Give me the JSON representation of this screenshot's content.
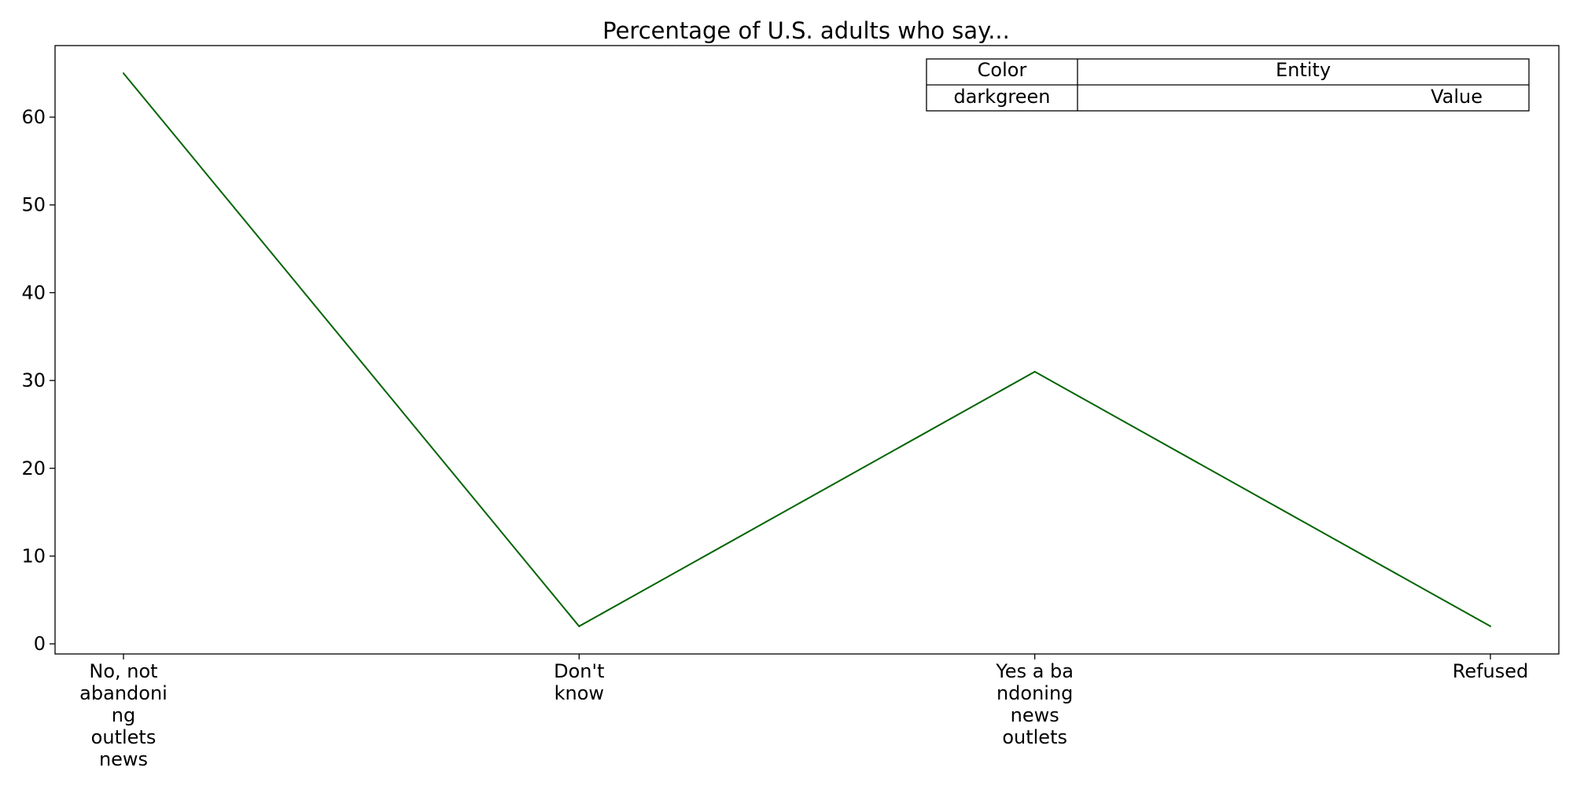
{
  "chart_data": {
    "type": "line",
    "title": "Percentage of U.S. adults who say...",
    "xlabel": "",
    "ylabel": "",
    "categories": [
      [
        "No, not",
        "abandoni",
        "ng",
        "outlets",
        "news"
      ],
      [
        "Don't",
        "know"
      ],
      [
        "Yes a ba",
        "ndoning",
        "news",
        "outlets"
      ],
      [
        "Refused"
      ]
    ],
    "series": [
      {
        "color": "#006400",
        "values": [
          65,
          2,
          31,
          2
        ]
      }
    ],
    "ylim": [
      -1.15,
      68.15
    ],
    "yticks": [
      0,
      10,
      20,
      30,
      40,
      50,
      60
    ],
    "grid": false,
    "legend_table": {
      "position": "top-right",
      "header": [
        "Color",
        "Entity"
      ],
      "row": [
        "darkgreen",
        "Value"
      ]
    }
  }
}
